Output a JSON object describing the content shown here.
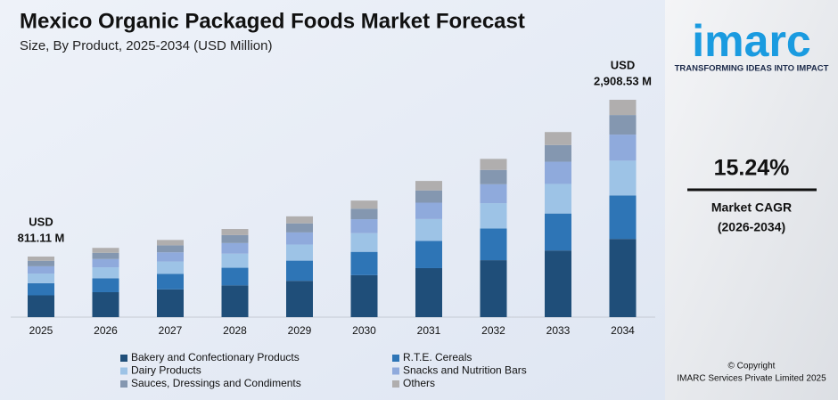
{
  "chart_data": {
    "type": "stacked_bar",
    "title": "Mexico Organic Packaged Foods Market Forecast",
    "subtitle": "Size, By Product, 2025-2034 (USD Million)",
    "categories": [
      "2025",
      "2026",
      "2027",
      "2028",
      "2029",
      "2030",
      "2031",
      "2032",
      "2033",
      "2034"
    ],
    "series": [
      {
        "name": "Bakery and Confectionary Products",
        "color": "#1f4e79",
        "values": [
          292,
          334,
          372,
          425,
          486,
          562,
          656,
          762,
          892,
          1047
        ]
      },
      {
        "name": "R.T.E. Cereals",
        "color": "#2e75b6",
        "values": [
          162,
          185,
          207,
          236,
          270,
          312,
          365,
          424,
          495,
          582
        ]
      },
      {
        "name": "Dairy Products",
        "color": "#9dc3e6",
        "values": [
          130,
          148,
          165,
          189,
          216,
          250,
          292,
          339,
          396,
          465
        ]
      },
      {
        "name": "Snacks and Nutrition Bars",
        "color": "#8faadc",
        "values": [
          97,
          111,
          124,
          142,
          162,
          187,
          219,
          254,
          297,
          349
        ]
      },
      {
        "name": "Sauces, Dressings and Condiments",
        "color": "#8497b0",
        "values": [
          73,
          83,
          93,
          106,
          121,
          140,
          164,
          191,
          223,
          262
        ]
      },
      {
        "name": "Others",
        "color": "#b0aeae",
        "values": [
          57,
          66,
          72,
          82,
          94,
          109,
          127,
          148,
          174,
          204
        ]
      }
    ],
    "annotations": [
      {
        "x": "2025",
        "lines": [
          "USD",
          "811.11 M"
        ]
      },
      {
        "x": "2034",
        "lines": [
          "USD",
          "2,908.53 M"
        ]
      }
    ],
    "legend": "bottom"
  },
  "sidebar": {
    "logo": "imarc",
    "tagline": "TRANSFORMING IDEAS INTO IMPACT",
    "cagr": "15.24%",
    "cagr_label": "Market CAGR",
    "cagr_period": "(2026-2034)",
    "copyright": "© Copyright",
    "company": "IMARC Services Private Limited 2025"
  }
}
